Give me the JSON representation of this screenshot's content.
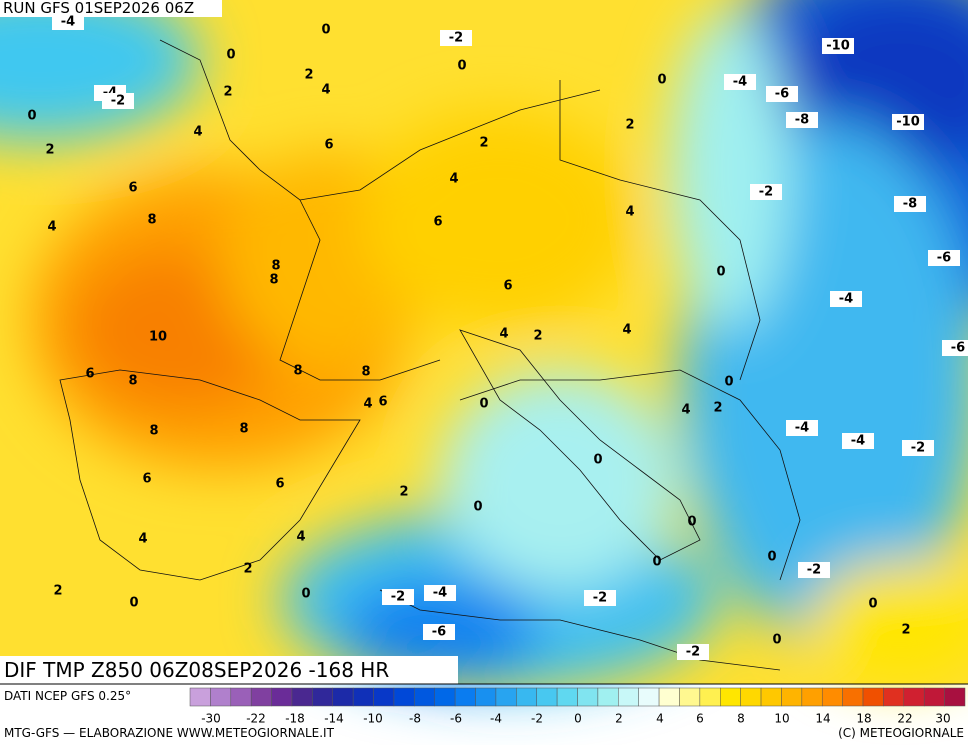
{
  "header": {
    "run": "RUN GFS 01SEP2026 06Z"
  },
  "map": {
    "title": "DIF TMP Z850 06Z08SEP2026 -168 HR",
    "labels": [
      -4,
      0,
      -2,
      0,
      -10,
      0,
      2,
      4,
      -4,
      0,
      -6,
      -4,
      -2,
      2,
      0,
      -8,
      -10,
      4,
      2,
      2,
      6,
      2,
      4,
      -2,
      6,
      8,
      4,
      6,
      4,
      -8,
      8,
      8,
      0,
      -6,
      6,
      -4,
      10,
      4,
      2,
      4,
      -6,
      6,
      8,
      8,
      8,
      0,
      4,
      6,
      0,
      4,
      2,
      8,
      8,
      -4,
      -4,
      -2,
      0,
      6,
      6,
      2,
      0,
      0,
      4,
      4,
      0,
      0,
      2,
      -2,
      2,
      0,
      0,
      -2,
      -4,
      -2,
      0,
      2,
      -6,
      0,
      -2
    ]
  },
  "footer": {
    "source": "DATI NCEP GFS 0.25°",
    "credit": "MTG-GFS — ELABORAZIONE WWW.METEOGIORNALE.IT",
    "copyright": "(C) METEOGIORNALE"
  },
  "colorbar": {
    "ticks": [
      -30,
      -22,
      -18,
      -14,
      -10,
      -8,
      -6,
      -4,
      -2,
      0,
      2,
      4,
      6,
      8,
      10,
      14,
      18,
      22,
      30
    ],
    "colors": [
      "#c9a0dc",
      "#b080cc",
      "#9a60b8",
      "#8040a0",
      "#6a2c98",
      "#4a2890",
      "#30289a",
      "#1c2aa8",
      "#1030b8",
      "#0838c8",
      "#0048d8",
      "#0058e0",
      "#0068e8",
      "#0a7cf0",
      "#1890f0",
      "#28a4f0",
      "#38b8f0",
      "#48c8f0",
      "#60d8f0",
      "#80e4f0",
      "#a0f0f0",
      "#c8f8f8",
      "#e8fcfc",
      "#ffffd0",
      "#fff890",
      "#fff050",
      "#ffe600",
      "#ffd800",
      "#ffc800",
      "#ffb400",
      "#ffa000",
      "#ff8c00",
      "#f87000",
      "#f05000",
      "#e03020",
      "#d02030",
      "#c01838",
      "#a81040"
    ]
  }
}
